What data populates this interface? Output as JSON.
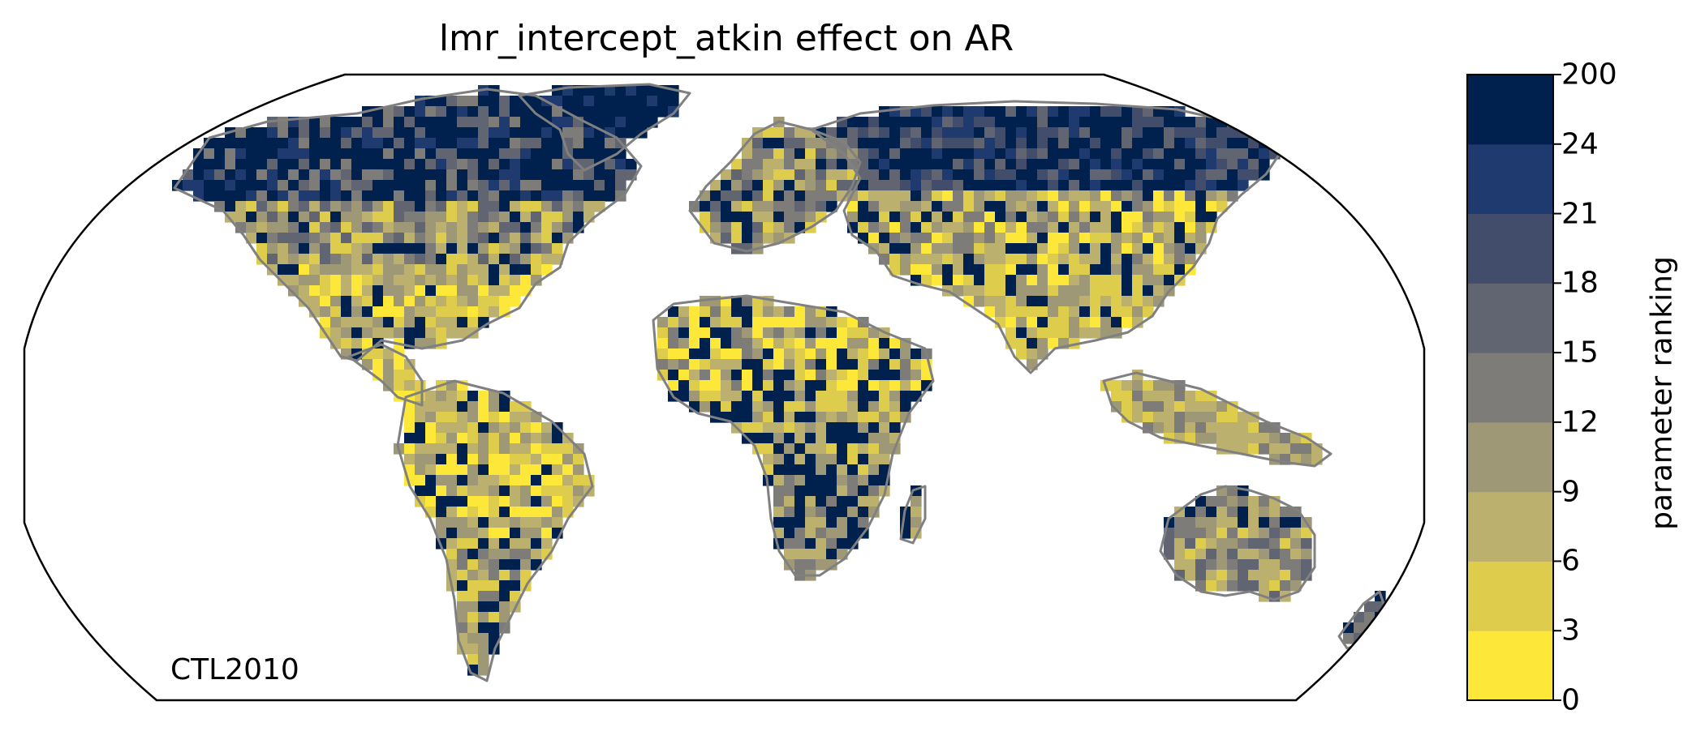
{
  "map": {
    "title": "lmr_intercept_atkin effect on AR",
    "run_label": "CTL2010",
    "projection": "robinson",
    "coastline_color": "#808080",
    "land_fill_note_colors": {
      "0-3": "#fde738",
      "3-6": "#decd4d",
      "6-9": "#bcb06f",
      "9-12": "#9e9877",
      "12-15": "#7d7c78",
      "15-18": "#616571",
      "18-21": "#424d6b",
      "21-24": "#1f3a6e",
      "24-200": "#00204d"
    }
  },
  "colorbar": {
    "label": "parameter ranking",
    "ticks": [
      "0",
      "3",
      "6",
      "9",
      "12",
      "15",
      "18",
      "21",
      "24",
      "200"
    ],
    "colors": [
      "#fde738",
      "#decd4d",
      "#bcb06f",
      "#9e9877",
      "#7d7c78",
      "#616571",
      "#424d6b",
      "#1f3a6e",
      "#00204d"
    ]
  }
}
